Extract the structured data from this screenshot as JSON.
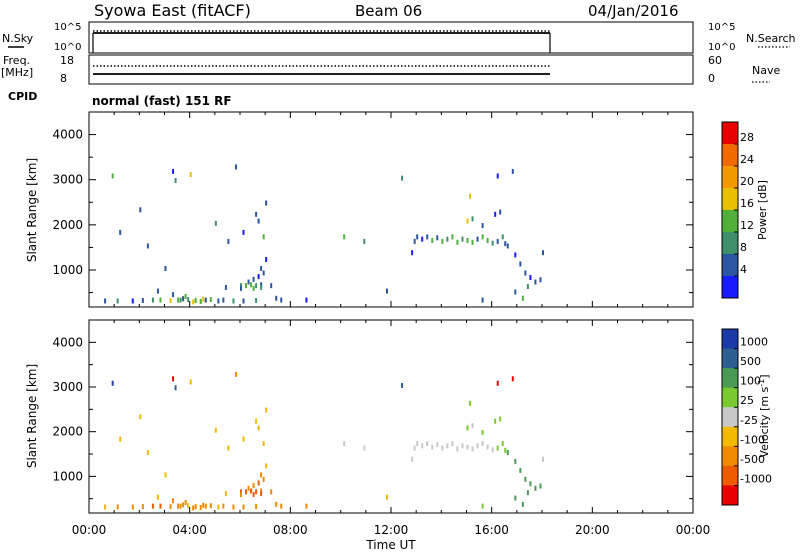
{
  "header": {
    "station": "Syowa East (fitACF)",
    "beam": "Beam 06",
    "date": "04/Jan/2016"
  },
  "top_panels": {
    "nsky_label": "N.Sky",
    "nsky_ticks": [
      "10^5",
      "10^0"
    ],
    "nsearch_label": "N.Search",
    "nsearch_ticks": [
      "10^5",
      "10^0"
    ],
    "freq_label": "Freq.",
    "freq_unit": "[MHz]",
    "freq_ticks": [
      "18",
      "8"
    ],
    "nave_label": "Nave",
    "nave_ticks": [
      "60",
      "0"
    ],
    "cpid_label": "CPID",
    "cpid_value": "normal (fast) 151 RF",
    "data_end_time": "18:20"
  },
  "chart_data": [
    {
      "type": "heatmap",
      "name": "power",
      "ylabel": "Slant Range [km]",
      "ylim": [
        180,
        4500
      ],
      "yticks": [
        "1000",
        "2000",
        "3000",
        "4000"
      ],
      "xlim": [
        "00:00",
        "24:00"
      ],
      "colorbar": {
        "label": "Power [dB]",
        "ticks": [
          "4",
          "8",
          "12",
          "16",
          "20",
          "24",
          "28"
        ],
        "colors": [
          "#1a1aff",
          "#2b55a0",
          "#3f8f6a",
          "#50b03a",
          "#e8c000",
          "#f39a00",
          "#f06a00",
          "#e80000"
        ]
      },
      "cells": [
        [
          0.6,
          280,
          1
        ],
        [
          1.1,
          280,
          2
        ],
        [
          1.7,
          280,
          0
        ],
        [
          2.1,
          290,
          1
        ],
        [
          2.5,
          300,
          2
        ],
        [
          2.8,
          300,
          3
        ],
        [
          3.2,
          290,
          4
        ],
        [
          3.5,
          300,
          3
        ],
        [
          3.9,
          310,
          2
        ],
        [
          4.2,
          290,
          3
        ],
        [
          4.6,
          300,
          1
        ],
        [
          5.1,
          280,
          1
        ],
        [
          5.7,
          280,
          2
        ],
        [
          6.1,
          280,
          1
        ],
        [
          6.6,
          290,
          2
        ],
        [
          2.7,
          500,
          1
        ],
        [
          3.3,
          420,
          1
        ],
        [
          3.8,
          380,
          3
        ],
        [
          4.1,
          260,
          4
        ],
        [
          4.4,
          270,
          3
        ],
        [
          5.4,
          580,
          1
        ],
        [
          6.0,
          620,
          2
        ],
        [
          6.2,
          620,
          3
        ],
        [
          6.4,
          640,
          3
        ],
        [
          6.6,
          620,
          2
        ],
        [
          6.8,
          640,
          1
        ],
        [
          6.3,
          700,
          1
        ],
        [
          6.5,
          760,
          1
        ],
        [
          6.7,
          820,
          0
        ],
        [
          6.9,
          900,
          1
        ],
        [
          6.8,
          1000,
          1
        ],
        [
          7.0,
          1200,
          0
        ],
        [
          6.0,
          560,
          1
        ],
        [
          6.5,
          560,
          3
        ],
        [
          6.8,
          580,
          2
        ],
        [
          7.2,
          620,
          1
        ],
        [
          7.4,
          340,
          1
        ],
        [
          0.9,
          3050,
          3
        ],
        [
          1.2,
          1800,
          1
        ],
        [
          2.0,
          2300,
          1
        ],
        [
          2.3,
          1500,
          1
        ],
        [
          3.0,
          1000,
          1
        ],
        [
          3.3,
          3150,
          0
        ],
        [
          3.4,
          2950,
          2
        ],
        [
          4.0,
          3080,
          4
        ],
        [
          5.0,
          2000,
          2
        ],
        [
          5.8,
          3250,
          1
        ],
        [
          5.5,
          1600,
          1
        ],
        [
          6.1,
          1800,
          0
        ],
        [
          6.6,
          2200,
          1
        ],
        [
          6.7,
          2050,
          1
        ],
        [
          7.0,
          2450,
          1
        ],
        [
          6.9,
          1700,
          3
        ],
        [
          7.6,
          300,
          1
        ],
        [
          8.6,
          300,
          0
        ],
        [
          10.1,
          1700,
          3
        ],
        [
          10.9,
          1600,
          2
        ],
        [
          11.8,
          500,
          1
        ],
        [
          12.4,
          3000,
          2
        ],
        [
          12.8,
          1350,
          0
        ],
        [
          12.9,
          1600,
          1
        ],
        [
          13.0,
          1700,
          1
        ],
        [
          13.2,
          1650,
          0
        ],
        [
          13.4,
          1700,
          1
        ],
        [
          13.6,
          1620,
          3
        ],
        [
          13.8,
          1680,
          1
        ],
        [
          14.0,
          1600,
          3
        ],
        [
          14.2,
          1650,
          2
        ],
        [
          14.4,
          1700,
          3
        ],
        [
          14.6,
          1580,
          3
        ],
        [
          14.8,
          1650,
          2
        ],
        [
          15.0,
          1620,
          3
        ],
        [
          15.2,
          1580,
          3
        ],
        [
          15.4,
          1650,
          1
        ],
        [
          15.6,
          1700,
          3
        ],
        [
          15.8,
          1620,
          3
        ],
        [
          16.0,
          1560,
          2
        ],
        [
          16.2,
          1600,
          1
        ],
        [
          16.4,
          1700,
          2
        ],
        [
          15.0,
          2050,
          4
        ],
        [
          15.2,
          2100,
          2
        ],
        [
          15.6,
          1950,
          1
        ],
        [
          16.1,
          2200,
          0
        ],
        [
          16.3,
          2250,
          1
        ],
        [
          16.2,
          3050,
          0
        ],
        [
          15.1,
          2600,
          4
        ],
        [
          16.8,
          3150,
          1
        ],
        [
          16.5,
          1550,
          1
        ],
        [
          16.6,
          1500,
          1
        ],
        [
          16.9,
          1300,
          0
        ],
        [
          17.1,
          1100,
          1
        ],
        [
          17.3,
          900,
          1
        ],
        [
          17.5,
          800,
          0
        ],
        [
          17.7,
          700,
          1
        ],
        [
          17.9,
          750,
          1
        ],
        [
          17.4,
          600,
          2
        ],
        [
          17.2,
          340,
          3
        ],
        [
          16.9,
          480,
          1
        ],
        [
          15.6,
          300,
          1
        ],
        [
          18.0,
          1350,
          1
        ],
        [
          3.6,
          300,
          2
        ],
        [
          3.7,
          330,
          1
        ],
        [
          4.5,
          320,
          4
        ],
        [
          4.8,
          310,
          3
        ],
        [
          5.3,
          300,
          1
        ]
      ]
    },
    {
      "type": "heatmap",
      "name": "velocity",
      "ylabel": "Slant Range [km]",
      "ylim": [
        180,
        4500
      ],
      "yticks": [
        "1000",
        "2000",
        "3000",
        "4000"
      ],
      "xlim": [
        "00:00",
        "24:00"
      ],
      "xticks": [
        "00:00",
        "04:00",
        "08:00",
        "12:00",
        "16:00",
        "20:00",
        "00:00"
      ],
      "xlabel": "Time UT",
      "colorbar": {
        "label": "Velocity [m s^-1]",
        "ticks": [
          "1000",
          "500",
          "100",
          "25",
          "-25",
          "-100",
          "-500",
          "-1000"
        ],
        "colors": [
          "#1a3aa8",
          "#2b6090",
          "#4a9a55",
          "#7ac930",
          "#c8c8c8",
          "#f3b800",
          "#f08a00",
          "#f05a00",
          "#e60000"
        ]
      },
      "cells": [
        [
          0.6,
          280,
          5
        ],
        [
          1.1,
          280,
          6
        ],
        [
          1.7,
          280,
          6
        ],
        [
          2.1,
          290,
          6
        ],
        [
          2.5,
          300,
          7
        ],
        [
          2.8,
          300,
          7
        ],
        [
          3.2,
          290,
          6
        ],
        [
          3.5,
          300,
          6
        ],
        [
          3.9,
          310,
          5
        ],
        [
          4.2,
          290,
          6
        ],
        [
          4.6,
          300,
          6
        ],
        [
          5.1,
          280,
          5
        ],
        [
          5.7,
          280,
          6
        ],
        [
          6.1,
          280,
          6
        ],
        [
          6.6,
          290,
          6
        ],
        [
          2.7,
          500,
          5
        ],
        [
          3.3,
          420,
          6
        ],
        [
          3.8,
          380,
          6
        ],
        [
          4.1,
          260,
          6
        ],
        [
          4.4,
          270,
          6
        ],
        [
          5.4,
          580,
          5
        ],
        [
          6.0,
          620,
          7
        ],
        [
          6.2,
          620,
          7
        ],
        [
          6.4,
          640,
          7
        ],
        [
          6.6,
          620,
          7
        ],
        [
          6.8,
          640,
          6
        ],
        [
          6.3,
          700,
          6
        ],
        [
          6.5,
          760,
          6
        ],
        [
          6.7,
          820,
          7
        ],
        [
          6.9,
          900,
          6
        ],
        [
          6.8,
          1000,
          6
        ],
        [
          7.0,
          1200,
          5
        ],
        [
          6.0,
          560,
          6
        ],
        [
          6.5,
          560,
          7
        ],
        [
          6.8,
          580,
          7
        ],
        [
          7.2,
          620,
          6
        ],
        [
          7.4,
          340,
          6
        ],
        [
          0.9,
          3050,
          0
        ],
        [
          1.2,
          1800,
          5
        ],
        [
          2.0,
          2300,
          5
        ],
        [
          2.3,
          1500,
          5
        ],
        [
          3.0,
          1000,
          5
        ],
        [
          3.3,
          3150,
          8
        ],
        [
          3.4,
          2950,
          1
        ],
        [
          4.0,
          3080,
          5
        ],
        [
          5.0,
          2000,
          5
        ],
        [
          5.8,
          3250,
          6
        ],
        [
          5.5,
          1600,
          5
        ],
        [
          6.1,
          1800,
          5
        ],
        [
          6.6,
          2200,
          5
        ],
        [
          6.7,
          2050,
          5
        ],
        [
          7.0,
          2450,
          5
        ],
        [
          6.9,
          1700,
          5
        ],
        [
          7.6,
          300,
          6
        ],
        [
          8.6,
          300,
          6
        ],
        [
          10.1,
          1700,
          4
        ],
        [
          10.9,
          1600,
          4
        ],
        [
          11.8,
          500,
          5
        ],
        [
          12.4,
          3000,
          1
        ],
        [
          12.8,
          1350,
          4
        ],
        [
          12.9,
          1600,
          4
        ],
        [
          13.0,
          1700,
          4
        ],
        [
          13.2,
          1650,
          4
        ],
        [
          13.4,
          1700,
          4
        ],
        [
          13.6,
          1620,
          4
        ],
        [
          13.8,
          1680,
          4
        ],
        [
          14.0,
          1600,
          4
        ],
        [
          14.2,
          1650,
          4
        ],
        [
          14.4,
          1700,
          4
        ],
        [
          14.6,
          1580,
          4
        ],
        [
          14.8,
          1650,
          4
        ],
        [
          15.0,
          1620,
          4
        ],
        [
          15.2,
          1580,
          4
        ],
        [
          15.4,
          1650,
          4
        ],
        [
          15.6,
          1700,
          4
        ],
        [
          15.8,
          1620,
          4
        ],
        [
          16.0,
          1560,
          4
        ],
        [
          16.2,
          1600,
          3
        ],
        [
          16.4,
          1700,
          3
        ],
        [
          15.0,
          2050,
          3
        ],
        [
          15.2,
          2100,
          4
        ],
        [
          15.6,
          1950,
          3
        ],
        [
          16.1,
          2200,
          3
        ],
        [
          16.3,
          2250,
          3
        ],
        [
          16.2,
          3050,
          8
        ],
        [
          15.1,
          2600,
          3
        ],
        [
          16.8,
          3150,
          8
        ],
        [
          16.5,
          1550,
          3
        ],
        [
          16.6,
          1500,
          2
        ],
        [
          16.9,
          1300,
          2
        ],
        [
          17.1,
          1100,
          2
        ],
        [
          17.3,
          900,
          2
        ],
        [
          17.5,
          800,
          2
        ],
        [
          17.7,
          700,
          2
        ],
        [
          17.9,
          750,
          2
        ],
        [
          17.4,
          600,
          2
        ],
        [
          17.2,
          340,
          2
        ],
        [
          16.9,
          480,
          2
        ],
        [
          15.6,
          300,
          3
        ],
        [
          18.0,
          1350,
          4
        ],
        [
          3.6,
          300,
          6
        ],
        [
          3.7,
          330,
          6
        ],
        [
          4.5,
          320,
          6
        ],
        [
          4.8,
          310,
          6
        ],
        [
          5.3,
          300,
          6
        ]
      ]
    }
  ]
}
